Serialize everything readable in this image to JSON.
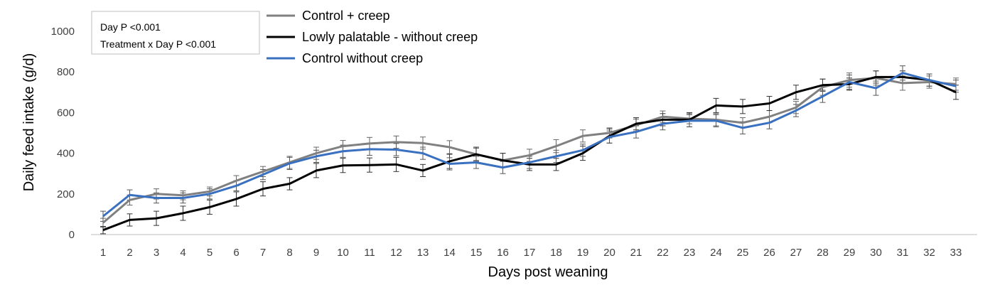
{
  "chart_data": {
    "type": "line",
    "xlabel": "Days post weaning",
    "ylabel": "Daily feed intake (g/d)",
    "ylim": [
      0,
      1000
    ],
    "yticks": [
      0,
      200,
      400,
      600,
      800,
      1000
    ],
    "grid": false,
    "legend_position": "top-left",
    "x": [
      1,
      2,
      3,
      4,
      5,
      6,
      7,
      8,
      9,
      10,
      11,
      12,
      13,
      14,
      15,
      16,
      17,
      18,
      19,
      20,
      21,
      22,
      23,
      24,
      25,
      26,
      27,
      28,
      29,
      30,
      31,
      32,
      33
    ],
    "stats_box": [
      "Day P <0.001",
      "Treatment x Day P <0.001"
    ],
    "series": [
      {
        "name": "Control + creep",
        "color": "#808080",
        "values": [
          58,
          170,
          200,
          193,
          212,
          265,
          310,
          355,
          400,
          435,
          448,
          455,
          450,
          430,
          395,
          365,
          390,
          435,
          485,
          500,
          538,
          580,
          570,
          565,
          550,
          580,
          625,
          725,
          760,
          770,
          745,
          750,
          740
        ],
        "error": [
          22,
          25,
          25,
          22,
          22,
          25,
          25,
          30,
          30,
          28,
          30,
          30,
          30,
          32,
          30,
          35,
          30,
          32,
          30,
          25,
          30,
          28,
          25,
          30,
          25,
          30,
          30,
          40,
          35,
          35,
          35,
          30,
          30
        ]
      },
      {
        "name": "Lowly palatable - without creep",
        "color": "#000000",
        "values": [
          22,
          72,
          80,
          105,
          135,
          175,
          225,
          250,
          315,
          340,
          342,
          345,
          315,
          360,
          395,
          365,
          345,
          345,
          400,
          485,
          545,
          565,
          565,
          635,
          630,
          645,
          700,
          735,
          740,
          775,
          775,
          760,
          700
        ],
        "error": [
          18,
          30,
          35,
          35,
          35,
          35,
          35,
          30,
          35,
          35,
          35,
          35,
          30,
          35,
          35,
          35,
          30,
          30,
          35,
          35,
          30,
          30,
          35,
          35,
          35,
          35,
          35,
          30,
          30,
          30,
          30,
          30,
          35
        ]
      },
      {
        "name": "Control without creep",
        "color": "#3a70c0",
        "values": [
          90,
          195,
          180,
          180,
          200,
          240,
          295,
          350,
          385,
          410,
          420,
          418,
          400,
          348,
          355,
          330,
          355,
          385,
          415,
          480,
          505,
          545,
          560,
          560,
          525,
          550,
          610,
          680,
          750,
          720,
          795,
          760,
          730
        ],
        "error": [
          25,
          25,
          25,
          25,
          25,
          25,
          25,
          30,
          30,
          30,
          30,
          30,
          30,
          30,
          30,
          30,
          30,
          30,
          30,
          30,
          30,
          30,
          30,
          30,
          30,
          30,
          30,
          30,
          35,
          35,
          35,
          30,
          30
        ]
      }
    ]
  }
}
